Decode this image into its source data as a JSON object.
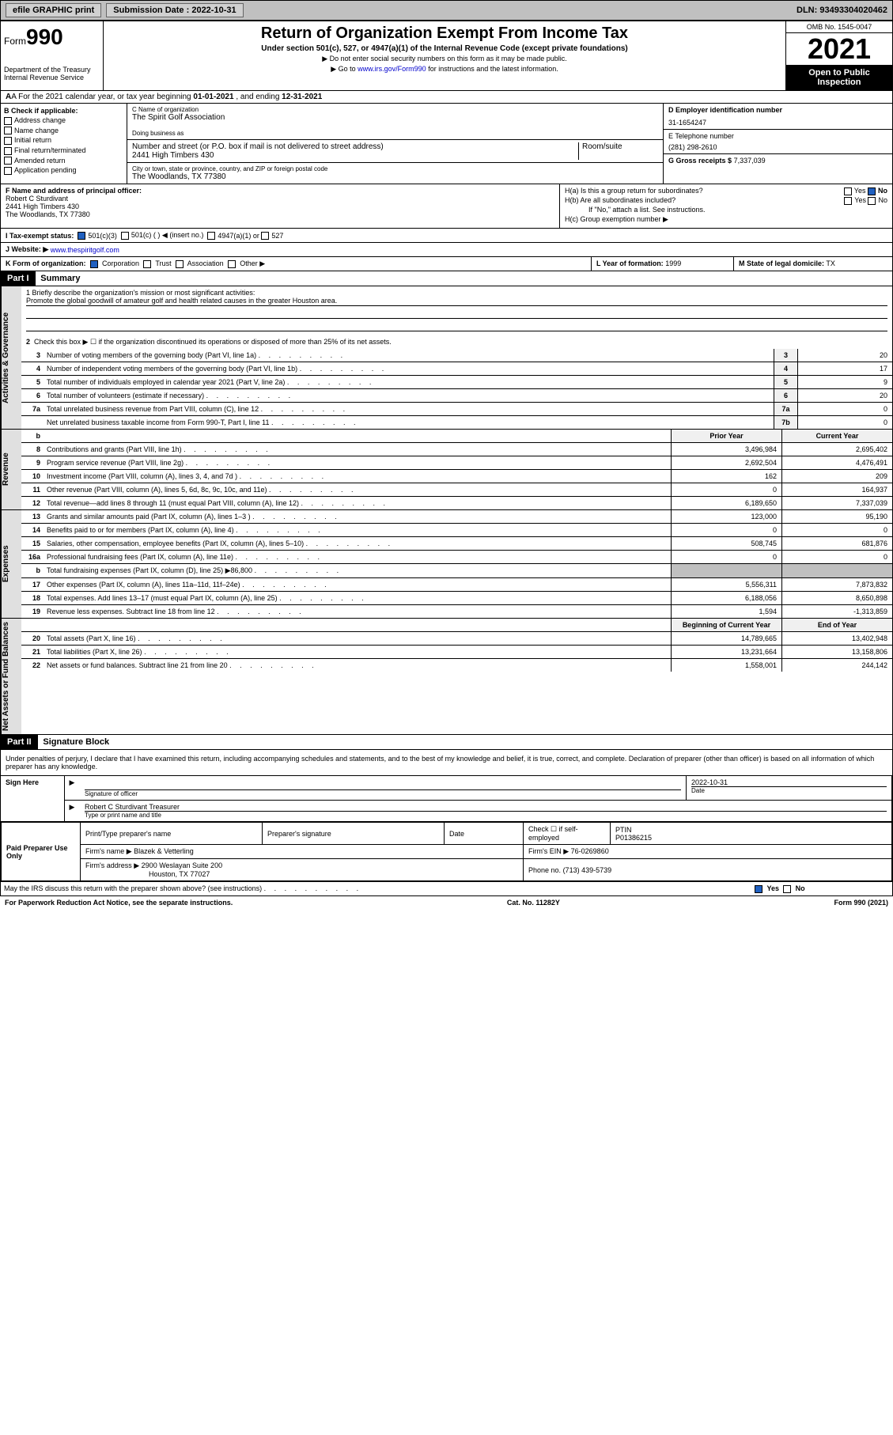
{
  "topbar": {
    "efile": "efile GRAPHIC print",
    "subdate_label": "Submission Date :",
    "subdate": "2022-10-31",
    "dln_label": "DLN:",
    "dln": "93493304020462"
  },
  "header": {
    "form_label": "Form",
    "form_num": "990",
    "dept": "Department of the Treasury\nInternal Revenue Service",
    "title": "Return of Organization Exempt From Income Tax",
    "sub": "Under section 501(c), 527, or 4947(a)(1) of the Internal Revenue Code (except private foundations)",
    "note1": "▶ Do not enter social security numbers on this form as it may be made public.",
    "note2_pre": "▶ Go to ",
    "note2_link": "www.irs.gov/Form990",
    "note2_post": " for instructions and the latest information.",
    "omb": "OMB No. 1545-0047",
    "year": "2021",
    "openpub": "Open to Public Inspection"
  },
  "row_a": {
    "text_pre": "A For the 2021 calendar year, or tax year beginning ",
    "begin": "01-01-2021",
    "mid": " , and ending ",
    "end": "12-31-2021"
  },
  "col_b": {
    "hdr": "B Check if applicable:",
    "items": [
      "Address change",
      "Name change",
      "Initial return",
      "Final return/terminated",
      "Amended return",
      "Application pending"
    ]
  },
  "org": {
    "c_label": "C Name of organization",
    "c_name": "The Spirit Golf Association",
    "dba_label": "Doing business as",
    "dba": "",
    "addr_label": "Number and street (or P.O. box if mail is not delivered to street address)",
    "addr": "2441 High Timbers 430",
    "room_label": "Room/suite",
    "city_label": "City or town, state or province, country, and ZIP or foreign postal code",
    "city": "The Woodlands, TX  77380"
  },
  "right": {
    "d_label": "D Employer identification number",
    "d_ein": "31-1654247",
    "e_label": "E Telephone number",
    "e_phone": "(281) 298-2610",
    "g_label": "G Gross receipts $",
    "g_val": "7,337,039"
  },
  "officer": {
    "f_label": "F Name and address of principal officer:",
    "name": "Robert C Sturdivant",
    "addr1": "2441 High Timbers 430",
    "addr2": "The Woodlands, TX  77380"
  },
  "h": {
    "ha": "H(a)  Is this a group return for subordinates?",
    "hb": "H(b)  Are all subordinates included?",
    "hb_note": "If \"No,\" attach a list. See instructions.",
    "hc": "H(c)  Group exemption number ▶",
    "yes": "Yes",
    "no": "No"
  },
  "i": {
    "label": "I   Tax-exempt status:",
    "c3": "501(c)(3)",
    "c": "501(c) (   ) ◀ (insert no.)",
    "a1": "4947(a)(1) or",
    "527": "527"
  },
  "j": {
    "label": "J   Website: ▶",
    "url": "www.thespiritgolf.com"
  },
  "k": {
    "label": "K Form of organization:",
    "corp": "Corporation",
    "trust": "Trust",
    "assoc": "Association",
    "other": "Other ▶"
  },
  "l": {
    "label": "L Year of formation:",
    "val": "1999"
  },
  "m": {
    "label": "M State of legal domicile:",
    "val": "TX"
  },
  "part1": {
    "hdr": "Part I",
    "title": "Summary"
  },
  "mission": {
    "q1": "1  Briefly describe the organization's mission or most significant activities:",
    "text": "Promote the global goodwill of amateur golf and health related causes in the greater Houston area.",
    "q2": "Check this box ▶ ☐  if the organization discontinued its operations or disposed of more than 25% of its net assets."
  },
  "gov_lines": [
    {
      "n": "3",
      "t": "Number of voting members of the governing body (Part VI, line 1a)",
      "c": "3",
      "v": "20"
    },
    {
      "n": "4",
      "t": "Number of independent voting members of the governing body (Part VI, line 1b)",
      "c": "4",
      "v": "17"
    },
    {
      "n": "5",
      "t": "Total number of individuals employed in calendar year 2021 (Part V, line 2a)",
      "c": "5",
      "v": "9"
    },
    {
      "n": "6",
      "t": "Total number of volunteers (estimate if necessary)",
      "c": "6",
      "v": "20"
    },
    {
      "n": "7a",
      "t": "Total unrelated business revenue from Part VIII, column (C), line 12",
      "c": "7a",
      "v": "0"
    },
    {
      "n": "",
      "t": "Net unrelated business taxable income from Form 990-T, Part I, line 11",
      "c": "7b",
      "v": "0"
    }
  ],
  "year_hdr": {
    "b": "b",
    "py": "Prior Year",
    "cy": "Current Year"
  },
  "rev_lines": [
    {
      "n": "8",
      "t": "Contributions and grants (Part VIII, line 1h)",
      "py": "3,496,984",
      "cy": "2,695,402"
    },
    {
      "n": "9",
      "t": "Program service revenue (Part VIII, line 2g)",
      "py": "2,692,504",
      "cy": "4,476,491"
    },
    {
      "n": "10",
      "t": "Investment income (Part VIII, column (A), lines 3, 4, and 7d )",
      "py": "162",
      "cy": "209"
    },
    {
      "n": "11",
      "t": "Other revenue (Part VIII, column (A), lines 5, 6d, 8c, 9c, 10c, and 11e)",
      "py": "0",
      "cy": "164,937"
    },
    {
      "n": "12",
      "t": "Total revenue—add lines 8 through 11 (must equal Part VIII, column (A), line 12)",
      "py": "6,189,650",
      "cy": "7,337,039"
    }
  ],
  "exp_lines": [
    {
      "n": "13",
      "t": "Grants and similar amounts paid (Part IX, column (A), lines 1–3 )",
      "py": "123,000",
      "cy": "95,190"
    },
    {
      "n": "14",
      "t": "Benefits paid to or for members (Part IX, column (A), line 4)",
      "py": "0",
      "cy": "0"
    },
    {
      "n": "15",
      "t": "Salaries, other compensation, employee benefits (Part IX, column (A), lines 5–10)",
      "py": "508,745",
      "cy": "681,876"
    },
    {
      "n": "16a",
      "t": "Professional fundraising fees (Part IX, column (A), line 11e)",
      "py": "0",
      "cy": "0"
    },
    {
      "n": "b",
      "t": "Total fundraising expenses (Part IX, column (D), line 25) ▶86,800",
      "py": "",
      "cy": "",
      "grey": true
    },
    {
      "n": "17",
      "t": "Other expenses (Part IX, column (A), lines 11a–11d, 11f–24e)",
      "py": "5,556,311",
      "cy": "7,873,832"
    },
    {
      "n": "18",
      "t": "Total expenses. Add lines 13–17 (must equal Part IX, column (A), line 25)",
      "py": "6,188,056",
      "cy": "8,650,898"
    },
    {
      "n": "19",
      "t": "Revenue less expenses. Subtract line 18 from line 12",
      "py": "1,594",
      "cy": "-1,313,859"
    }
  ],
  "na_hdr": {
    "py": "Beginning of Current Year",
    "cy": "End of Year"
  },
  "na_lines": [
    {
      "n": "20",
      "t": "Total assets (Part X, line 16)",
      "py": "14,789,665",
      "cy": "13,402,948"
    },
    {
      "n": "21",
      "t": "Total liabilities (Part X, line 26)",
      "py": "13,231,664",
      "cy": "13,158,806"
    },
    {
      "n": "22",
      "t": "Net assets or fund balances. Subtract line 21 from line 20",
      "py": "1,558,001",
      "cy": "244,142"
    }
  ],
  "part2": {
    "hdr": "Part II",
    "title": "Signature Block"
  },
  "decl": "Under penalties of perjury, I declare that I have examined this return, including accompanying schedules and statements, and to the best of my knowledge and belief, it is true, correct, and complete. Declaration of preparer (other than officer) is based on all information of which preparer has any knowledge.",
  "sign": {
    "here": "Sign Here",
    "sig_label": "Signature of officer",
    "date_label": "Date",
    "date": "2022-10-31",
    "name": "Robert C Sturdivant Treasurer",
    "name_label": "Type or print name and title"
  },
  "paid": {
    "here": "Paid Preparer Use Only",
    "pt_name": "Print/Type preparer's name",
    "pt_sig": "Preparer's signature",
    "pt_date": "Date",
    "check_se": "Check ☐ if self-employed",
    "ptin_label": "PTIN",
    "ptin": "P01386215",
    "firm_name_label": "Firm's name    ▶",
    "firm_name": "Blazek & Vetterling",
    "firm_ein_label": "Firm's EIN ▶",
    "firm_ein": "76-0269860",
    "firm_addr_label": "Firm's address ▶",
    "firm_addr1": "2900 Weslayan Suite 200",
    "firm_addr2": "Houston, TX  77027",
    "phone_label": "Phone no.",
    "phone": "(713) 439-5739"
  },
  "discuss": "May the IRS discuss this return with the preparer shown above? (see instructions)",
  "foot": {
    "pra": "For Paperwork Reduction Act Notice, see the separate instructions.",
    "cat": "Cat. No. 11282Y",
    "form": "Form 990 (2021)"
  },
  "side_labels": {
    "gov": "Activities & Governance",
    "rev": "Revenue",
    "exp": "Expenses",
    "na": "Net Assets or Fund Balances"
  }
}
